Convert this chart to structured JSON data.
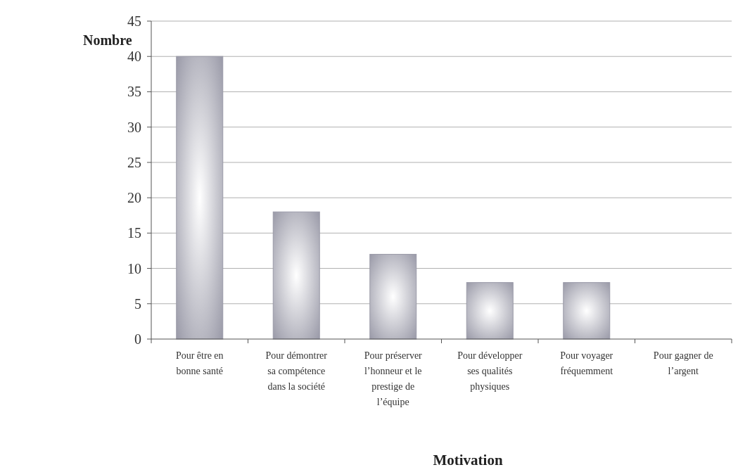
{
  "chart_data": {
    "type": "bar",
    "xlabel": "Motivation",
    "ylabel": "Nombre",
    "categories": [
      "Pour être en bonne santé",
      "Pour démontrer sa compétence dans la société",
      "Pour préserver l’honneur et le prestige de l’équipe",
      "Pour développer ses qualités physiques",
      "Pour voyager fréquemment",
      "Pour gagner de l’argent"
    ],
    "values": [
      40,
      18,
      12,
      8,
      8,
      0
    ],
    "color": "#9a9aa8",
    "ylim": [
      0,
      45
    ],
    "yticks": [
      0,
      5,
      10,
      15,
      20,
      25,
      30,
      35,
      40,
      45
    ],
    "grid": "y"
  }
}
